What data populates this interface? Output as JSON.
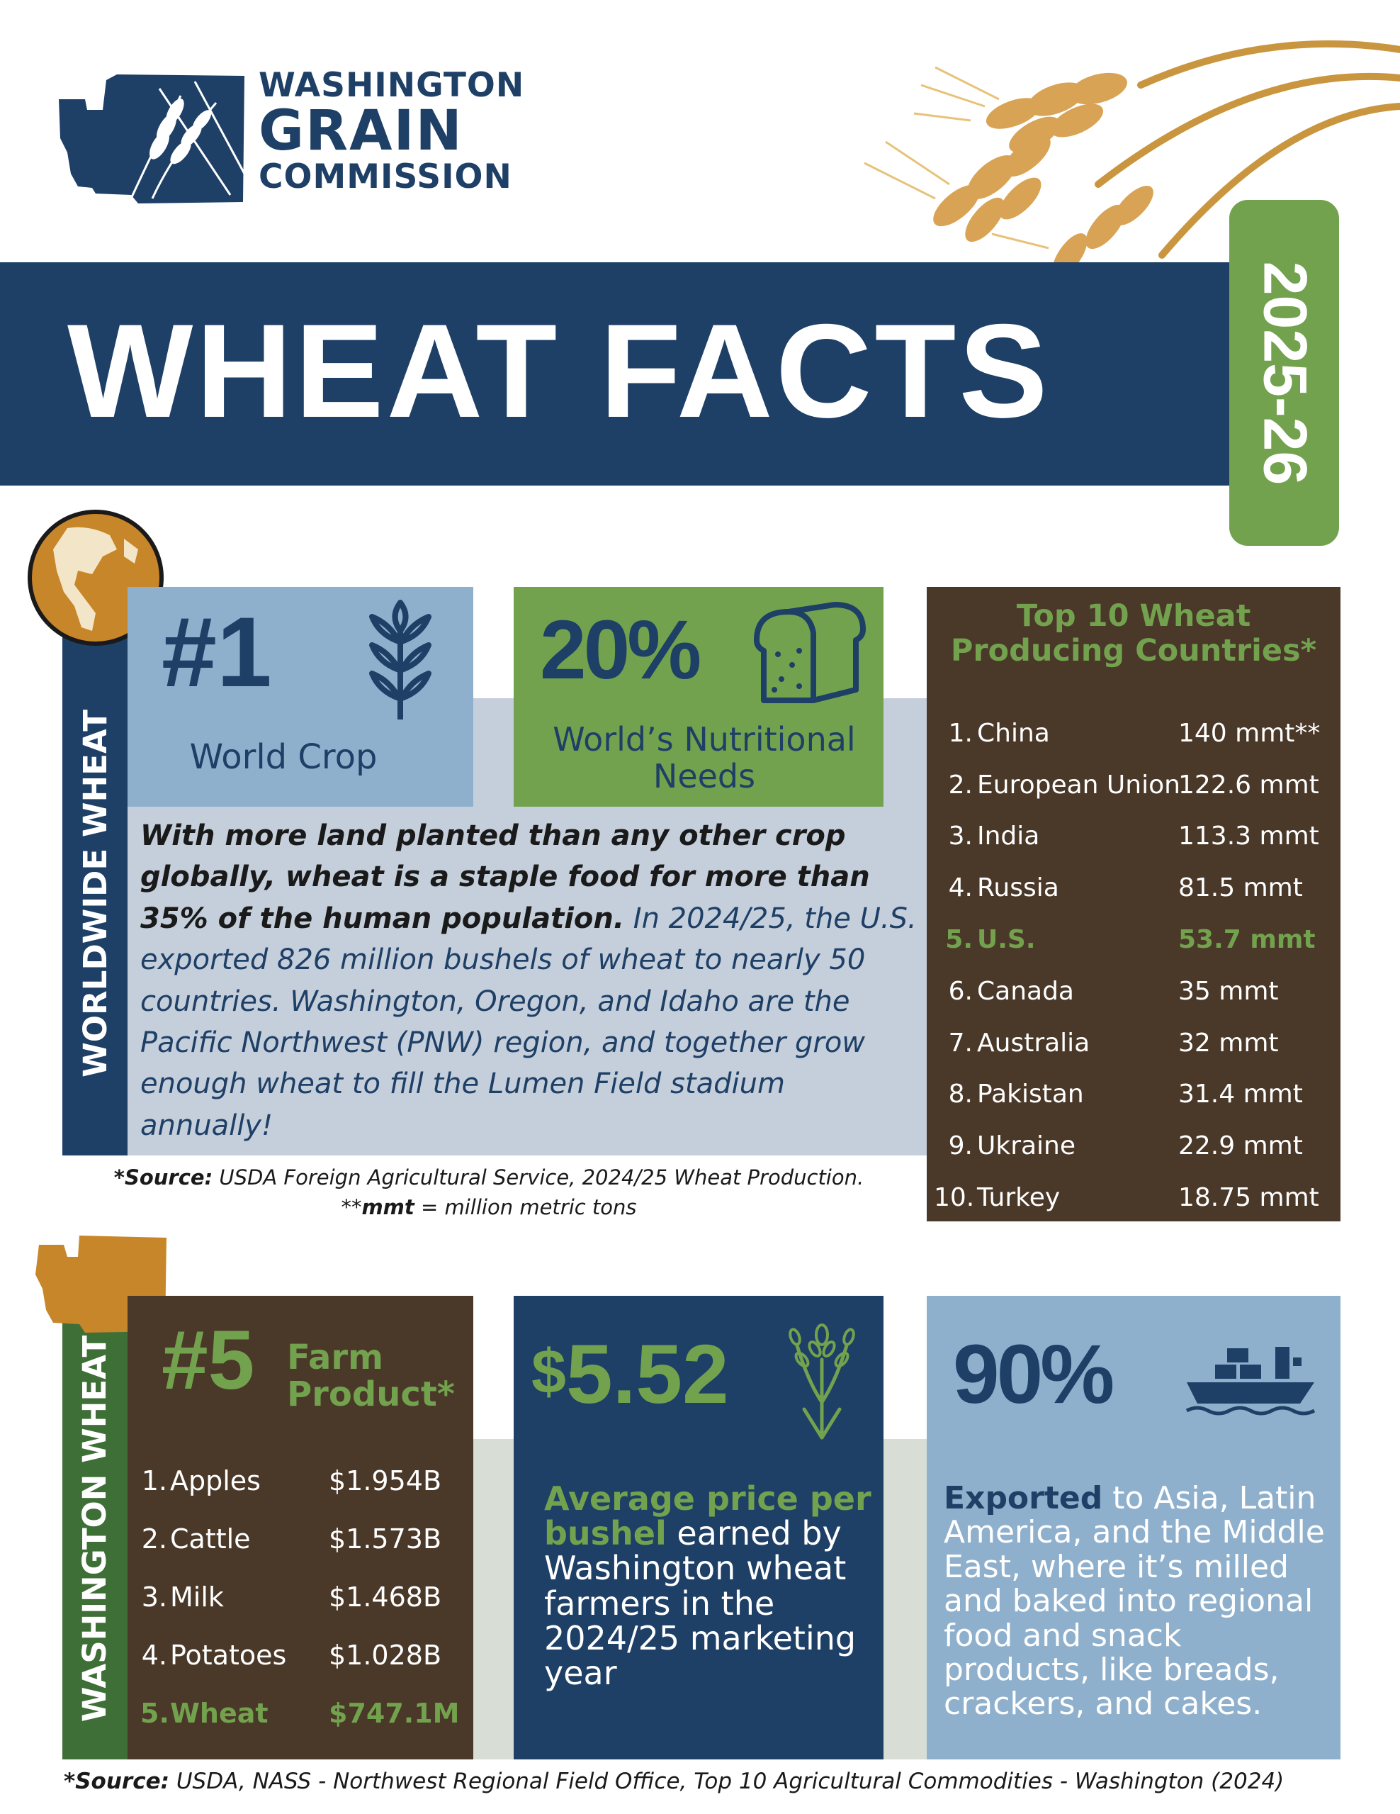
{
  "header": {
    "logo_line1": "WASHINGTON",
    "logo_line2": "GRAIN",
    "logo_line3": "COMMISSION",
    "title": "WHEAT FACTS",
    "year": "2025-26"
  },
  "worldwide": {
    "section_label": "WORLDWIDE WHEAT",
    "rank": "#1",
    "rank_caption": "World Crop",
    "percent": "20%",
    "percent_caption": "World’s Nutritional Needs",
    "body_bold": "With more land planted than any other crop globally, wheat is a staple food for more than 35% of the human population.",
    "body_rest": " In 2024/25, the U.S. exported 826 million bushels of wheat to nearly 50 countries. Washington, Oregon, and Idaho are the Pacific Northwest (PNW) region, and together grow enough wheat to fill the Lumen Field stadium annually!",
    "source_bold": "*Source:",
    "source_text": " USDA Foreign Agricultural Service, 2024/25 Wheat Production.",
    "mmt_prefix": "**",
    "mmt_bold": "mmt",
    "mmt_text": " = million metric tons"
  },
  "top10": {
    "title": "Top 10 Wheat Producing Countries*",
    "rows": [
      {
        "rank": "1.",
        "country": "China",
        "value": "140 mmt**"
      },
      {
        "rank": "2.",
        "country": "European Union",
        "value": "122.6 mmt"
      },
      {
        "rank": "3.",
        "country": "India",
        "value": "113.3 mmt"
      },
      {
        "rank": "4.",
        "country": "Russia",
        "value": "81.5 mmt"
      },
      {
        "rank": "5.",
        "country": "U.S.",
        "value": "53.7 mmt"
      },
      {
        "rank": "6.",
        "country": "Canada",
        "value": "35 mmt"
      },
      {
        "rank": "7.",
        "country": "Australia",
        "value": "32 mmt"
      },
      {
        "rank": "8.",
        "country": "Pakistan",
        "value": "31.4 mmt"
      },
      {
        "rank": "9.",
        "country": "Ukraine",
        "value": "22.9 mmt"
      },
      {
        "rank": "10.",
        "country": "Turkey",
        "value": "18.75 mmt"
      }
    ]
  },
  "washington": {
    "section_label": "WASHINGTON WHEAT",
    "rank": "#5",
    "rank_label_line1": "Farm",
    "rank_label_line2": "Product*",
    "products": [
      {
        "rank": "1.",
        "name": "Apples",
        "value": "$1.954B"
      },
      {
        "rank": "2.",
        "name": "Cattle",
        "value": "$1.573B"
      },
      {
        "rank": "3.",
        "name": "Milk",
        "value": "$1.468B"
      },
      {
        "rank": "4.",
        "name": "Potatoes",
        "value": "$1.028B"
      },
      {
        "rank": "5.",
        "name": "Wheat",
        "value": "$747.1M"
      }
    ],
    "price_symbol": "$",
    "price_value": "5.52",
    "price_text_hl": "Average price per bushel",
    "price_text_rest": " earned by Washington wheat farmers in the 2024/25 marketing year",
    "export_percent": "90%",
    "export_bold": "Exported",
    "export_rest": " to Asia, Latin America, and the Middle East, where it’s milled and baked into regional food and snack products, like breads, crackers, and cakes.",
    "source_bold": "*Source:",
    "source_text": " USDA, NASS - Northwest Regional Field Office, Top 10 Agricultural Commodities - Washington (2024)"
  },
  "icons": {
    "logo": "washington-state-wheat-logo",
    "wheat_photo": "wheat-stalks-photo",
    "globe": "globe-icon",
    "wheat": "wheat-icon",
    "bread": "bread-loaf-icon",
    "wa_map": "washington-state-map-icon",
    "ship": "cargo-ship-icon"
  },
  "colors": {
    "navy": "#1e3f66",
    "green": "#73a24e",
    "brown": "#4a3829",
    "light_blue": "#8fb0cc",
    "gray_blue": "#c5cfdb",
    "gold": "#c8862a"
  }
}
